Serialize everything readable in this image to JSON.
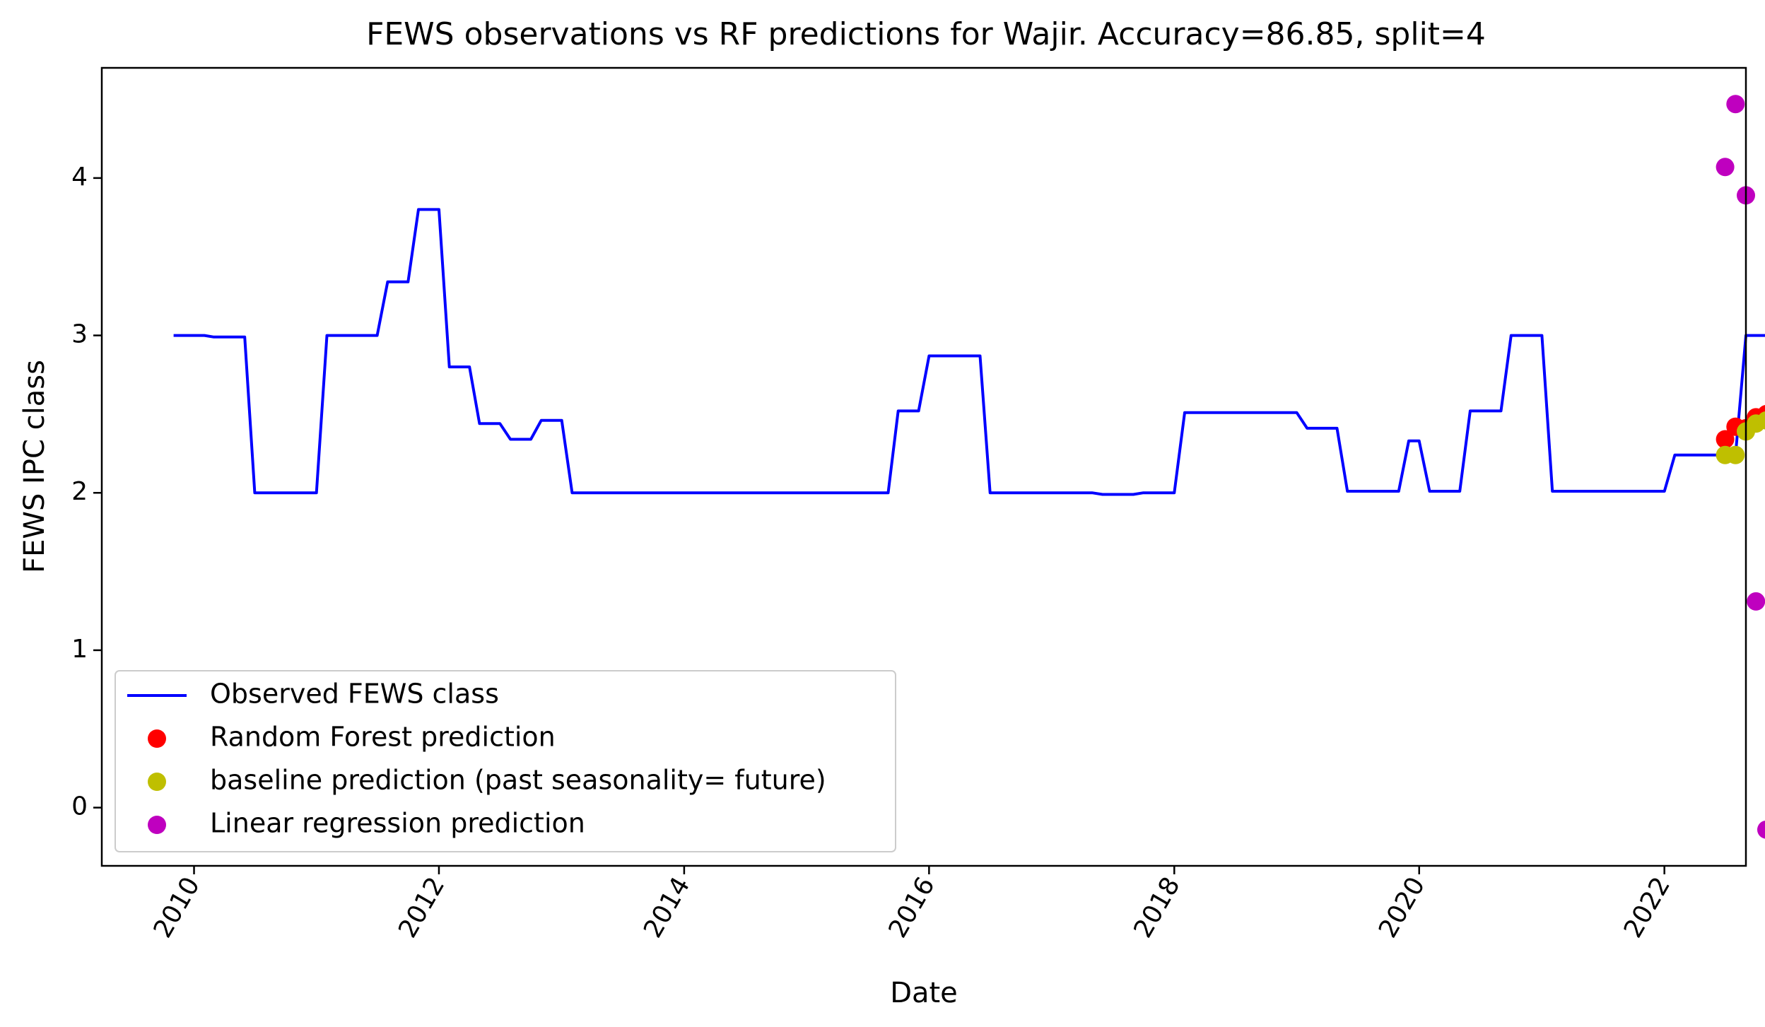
{
  "chart_data": {
    "type": "line",
    "title": "FEWS observations vs RF predictions for Wajir. Accuracy=86.85, split=4",
    "xlabel": "Date",
    "ylabel": "FEWS IPC class",
    "xlim": [
      "2009-04-01",
      "2022-09-01"
    ],
    "ylim": [
      -0.37,
      4.7
    ],
    "x_ticks": [
      "2010",
      "2012",
      "2014",
      "2016",
      "2018",
      "2020",
      "2022"
    ],
    "y_ticks": [
      0,
      1,
      2,
      3,
      4
    ],
    "grid": false,
    "legend_position": "lower-left",
    "series": [
      {
        "name": "Observed FEWS class",
        "kind": "line",
        "color": "#0000ff",
        "points": [
          [
            "2009-11-01",
            3.0
          ],
          [
            "2010-02-01",
            3.0
          ],
          [
            "2010-03-01",
            2.99
          ],
          [
            "2010-06-01",
            2.99
          ],
          [
            "2010-07-01",
            2.0
          ],
          [
            "2011-01-01",
            2.0
          ],
          [
            "2011-02-01",
            3.0
          ],
          [
            "2011-07-01",
            3.0
          ],
          [
            "2011-08-01",
            3.34
          ],
          [
            "2011-10-01",
            3.34
          ],
          [
            "2011-11-01",
            3.8
          ],
          [
            "2012-01-01",
            3.8
          ],
          [
            "2012-02-01",
            2.8
          ],
          [
            "2012-04-01",
            2.8
          ],
          [
            "2012-05-01",
            2.44
          ],
          [
            "2012-07-01",
            2.44
          ],
          [
            "2012-08-01",
            2.34
          ],
          [
            "2012-10-01",
            2.34
          ],
          [
            "2012-11-01",
            2.46
          ],
          [
            "2013-01-01",
            2.46
          ],
          [
            "2013-02-01",
            2.0
          ],
          [
            "2015-09-01",
            2.0
          ],
          [
            "2015-10-01",
            2.52
          ],
          [
            "2015-12-01",
            2.52
          ],
          [
            "2016-01-01",
            2.87
          ],
          [
            "2016-06-01",
            2.87
          ],
          [
            "2016-07-01",
            2.0
          ],
          [
            "2017-05-01",
            2.0
          ],
          [
            "2017-06-01",
            1.99
          ],
          [
            "2017-09-01",
            1.99
          ],
          [
            "2017-10-01",
            2.0
          ],
          [
            "2018-01-01",
            2.0
          ],
          [
            "2018-02-01",
            2.51
          ],
          [
            "2018-09-01",
            2.51
          ],
          [
            "2019-01-01",
            2.51
          ],
          [
            "2019-02-01",
            2.41
          ],
          [
            "2019-05-01",
            2.41
          ],
          [
            "2019-06-01",
            2.01
          ],
          [
            "2019-11-01",
            2.01
          ],
          [
            "2019-12-01",
            2.33
          ],
          [
            "2020-01-01",
            2.33
          ],
          [
            "2020-02-01",
            2.01
          ],
          [
            "2020-05-01",
            2.01
          ],
          [
            "2020-06-01",
            2.52
          ],
          [
            "2020-09-01",
            2.52
          ],
          [
            "2020-10-01",
            3.0
          ],
          [
            "2021-01-01",
            3.0
          ],
          [
            "2021-02-01",
            2.01
          ],
          [
            "2022-01-01",
            2.01
          ],
          [
            "2022-02-01",
            2.24
          ],
          [
            "2022-08-01",
            2.24
          ],
          [
            "2022-09-01",
            3.0
          ],
          [
            "2022-12-01",
            3.0
          ]
        ]
      },
      {
        "name": "Random Forest prediction",
        "kind": "scatter",
        "color": "#ff0000",
        "points": [
          [
            "2022-07-01",
            2.34
          ],
          [
            "2022-08-01",
            2.42
          ],
          [
            "2022-09-01",
            2.41
          ],
          [
            "2022-10-01",
            2.48
          ],
          [
            "2022-11-01",
            2.5
          ]
        ]
      },
      {
        "name": "baseline prediction (past seasonality= future)",
        "kind": "scatter",
        "color": "#bfbf00",
        "points": [
          [
            "2022-07-01",
            2.24
          ],
          [
            "2022-08-01",
            2.24
          ],
          [
            "2022-09-01",
            2.39
          ],
          [
            "2022-10-01",
            2.44
          ],
          [
            "2022-11-01",
            2.46
          ]
        ]
      },
      {
        "name": "Linear regression prediction",
        "kind": "scatter",
        "color": "#bf00bf",
        "points": [
          [
            "2022-07-01",
            4.07
          ],
          [
            "2022-08-01",
            4.47
          ],
          [
            "2022-09-01",
            3.89
          ],
          [
            "2022-10-01",
            1.31
          ],
          [
            "2022-11-01",
            -0.14
          ]
        ]
      }
    ]
  }
}
